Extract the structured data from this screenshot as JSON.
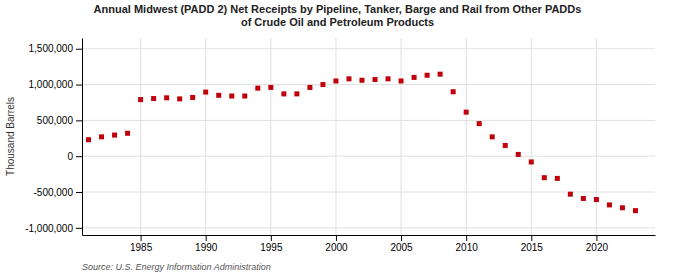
{
  "chart_data": {
    "type": "scatter",
    "title": "Annual Midwest (PADD 2) Net Receipts by Pipeline, Tanker, Barge and Rail from Other PADDs\nof Crude Oil and Petroleum Products",
    "ylabel": "Thousand Barrels",
    "source": "Source: U.S. Energy Information Administration",
    "x": [
      1981,
      1982,
      1983,
      1984,
      1985,
      1986,
      1987,
      1988,
      1989,
      1990,
      1991,
      1992,
      1993,
      1994,
      1995,
      1996,
      1997,
      1998,
      1999,
      2000,
      2001,
      2002,
      2003,
      2004,
      2005,
      2006,
      2007,
      2008,
      2009,
      2010,
      2011,
      2012,
      2013,
      2014,
      2015,
      2016,
      2017,
      2018,
      2019,
      2020,
      2021,
      2022,
      2023
    ],
    "values": [
      230000,
      270000,
      295000,
      320000,
      790000,
      805000,
      815000,
      800000,
      820000,
      895000,
      850000,
      840000,
      840000,
      950000,
      960000,
      870000,
      870000,
      960000,
      1000000,
      1050000,
      1080000,
      1060000,
      1070000,
      1080000,
      1050000,
      1100000,
      1130000,
      1145000,
      900000,
      615000,
      455000,
      270000,
      150000,
      25000,
      -80000,
      -300000,
      -310000,
      -530000,
      -590000,
      -605000,
      -680000,
      -720000,
      -760000
    ],
    "color": "#c0000a",
    "marker": "square",
    "xlim": [
      1980.5,
      2024.5
    ],
    "xticks": [
      1985,
      1990,
      1995,
      2000,
      2005,
      2010,
      2015,
      2020
    ],
    "ylim": [
      -1100000,
      1650000
    ],
    "yticks": [
      {
        "value": -1000000,
        "label": "-1,000,000"
      },
      {
        "value": -500000,
        "label": "-500,000"
      },
      0,
      {
        "value": 500000,
        "label": "500,000"
      },
      {
        "value": 1000000,
        "label": "1,000,000"
      },
      {
        "value": 1500000,
        "label": "1,500,000"
      }
    ],
    "grid": true
  }
}
